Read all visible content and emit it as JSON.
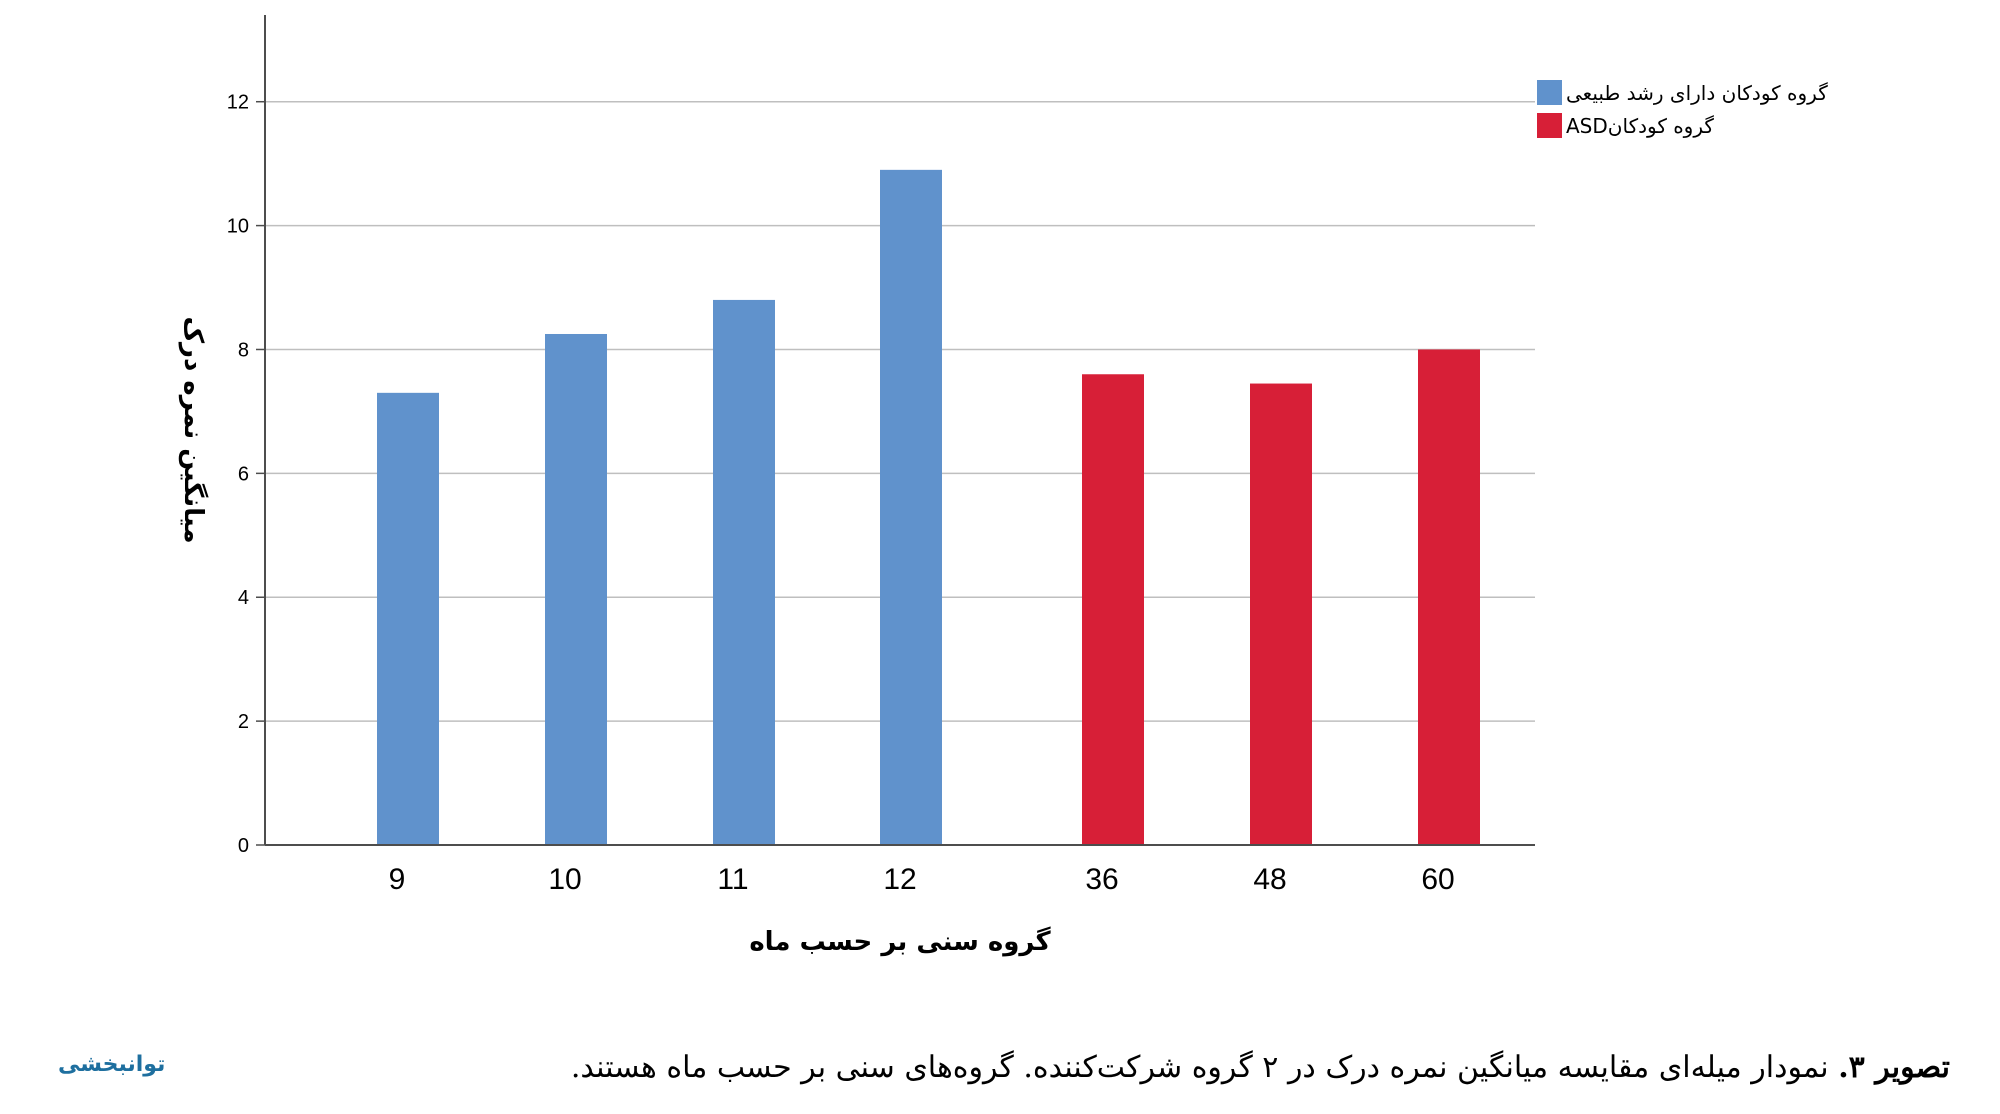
{
  "chart_data": {
    "type": "bar",
    "categories": [
      "9",
      "10",
      "11",
      "12",
      "36",
      "48",
      "60"
    ],
    "series": [
      {
        "name": "گروه کودکان دارای رشد طبیعی",
        "color": "#6092cc",
        "values": [
          7.3,
          8.25,
          8.8,
          10.9,
          null,
          null,
          null
        ]
      },
      {
        "name": "گروه کودکانASD",
        "color": "#d71f37",
        "values": [
          null,
          null,
          null,
          null,
          7.6,
          7.45,
          8.0
        ]
      }
    ],
    "xlabel": "گروه سنی بر حسب ماه",
    "ylabel": "میانگین نمره درک",
    "ylim": [
      0,
      13.4
    ],
    "yticks": [
      "0",
      "2",
      "4",
      "6",
      "8",
      "10",
      "12"
    ],
    "ytick_values": [
      0,
      2,
      4,
      6,
      8,
      10,
      12
    ],
    "grid": true,
    "legend": "top-right"
  },
  "caption": {
    "label": "تصویر ۳.",
    "text": "نمودار میله‌ای مقایسه میانگین نمره درک در ۲ گروه شرکت‌کننده. گروه‌های سنی بر حسب ماه هستند."
  },
  "brand": {
    "text": "توانبخشی",
    "color": "#1e6f9f"
  },
  "colors": {
    "gridline": "#bfbfbf",
    "axis": "#4d4d4d"
  }
}
